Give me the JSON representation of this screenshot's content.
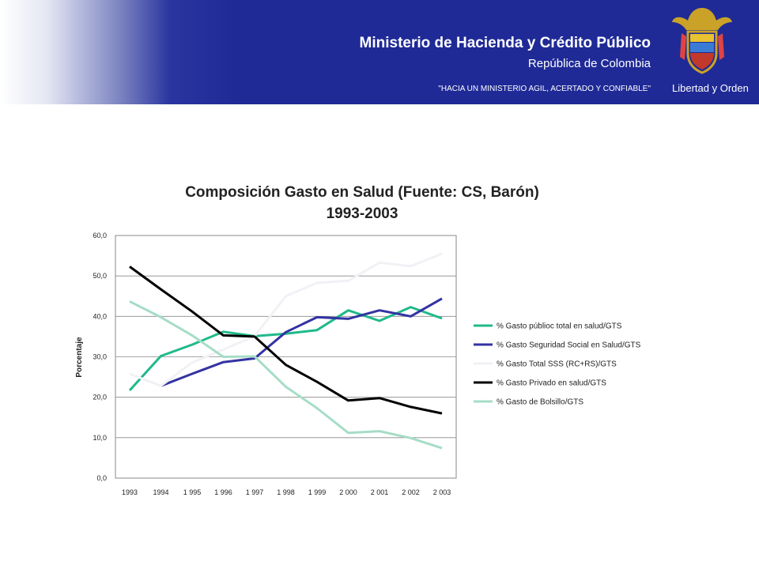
{
  "header": {
    "ministry": "Ministerio de Hacienda y Crédito Público",
    "republic": "República de Colombia",
    "motto": "\"HACIA UN MINISTERIO AGIL, ACERTADO Y CONFIABLE\"",
    "seal_text": "Libertad y Orden",
    "colors": {
      "band": "#1f2a96",
      "text": "#ffffff",
      "seal_gold": "#c9a227"
    }
  },
  "chart_data": {
    "type": "line",
    "title": "Composición Gasto en Salud (Fuente: CS, Barón)",
    "subtitle": "1993-2003",
    "xlabel": "",
    "ylabel": "Porcentaje",
    "ylim": [
      0,
      60
    ],
    "yticks": [
      "0,0",
      "10,0",
      "20,0",
      "30,0",
      "40,0",
      "50,0",
      "60,0"
    ],
    "categories": [
      "1993",
      "1994",
      "1 995",
      "1 996",
      "1 997",
      "1 998",
      "1 999",
      "2 000",
      "2 001",
      "2 002",
      "2 003"
    ],
    "grid": true,
    "legend_position": "right",
    "series": [
      {
        "name": "% Gasto públioc total en salud/GTS",
        "color": "#1fb98a",
        "values": [
          21.7,
          30.2,
          33.0,
          36.2,
          35.1,
          35.7,
          36.6,
          41.5,
          38.9,
          42.3,
          39.5
        ]
      },
      {
        "name": "% Gasto Seguridad Social en Salud/GTS",
        "color": "#3333a3",
        "values": [
          null,
          22.8,
          25.8,
          28.7,
          29.6,
          36.1,
          39.8,
          39.4,
          41.5,
          40.0,
          44.4
        ]
      },
      {
        "name": "% Gasto Total SSS (RC+RS)/GTS",
        "color": "#f1f1f6",
        "values": [
          25.8,
          22.8,
          28.6,
          31.8,
          35.1,
          45.0,
          48.3,
          48.8,
          53.3,
          52.4,
          55.5
        ]
      },
      {
        "name": "% Gasto Privado en salud/GTS",
        "color": "#000000",
        "values": [
          52.3,
          46.7,
          41.2,
          35.3,
          35.0,
          28.0,
          23.8,
          19.2,
          19.8,
          17.6,
          16.0
        ]
      },
      {
        "name": "% Gasto de Bolsillo/GTS",
        "color": "#a6ddc6",
        "values": [
          43.7,
          39.8,
          35.3,
          30.0,
          30.1,
          22.6,
          17.3,
          11.2,
          11.6,
          9.9,
          7.4
        ]
      }
    ]
  }
}
